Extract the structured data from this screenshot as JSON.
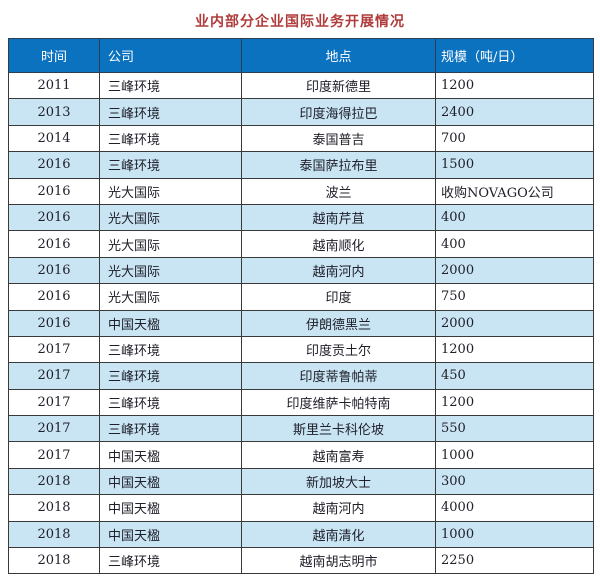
{
  "title": "业内部分企业国际业务开展情况",
  "colors": {
    "title_text": "#b03b3b",
    "header_bg": "#0b72c0",
    "header_text": "#ffffff",
    "row_stripe_bg": "#c9e5f4",
    "grid_border": "#3a3a3a"
  },
  "table": {
    "columns": [
      {
        "label": "时间",
        "align": "center"
      },
      {
        "label": "公司",
        "align": "left"
      },
      {
        "label": "地点",
        "align": "center"
      },
      {
        "label": "规模（吨/日）",
        "align": "left-tight"
      }
    ],
    "rows": [
      [
        "2011",
        "三峰环境",
        "印度新德里",
        "1200"
      ],
      [
        "2013",
        "三峰环境",
        "印度海得拉巴",
        "2400"
      ],
      [
        "2014",
        "三峰环境",
        "泰国普吉",
        "700"
      ],
      [
        "2016",
        "三峰环境",
        "泰国萨拉布里",
        "1500"
      ],
      [
        "2016",
        "光大国际",
        "波兰",
        "收购NOVAGO公司"
      ],
      [
        "2016",
        "光大国际",
        "越南芹苴",
        "400"
      ],
      [
        "2016",
        "光大国际",
        "越南顺化",
        "400"
      ],
      [
        "2016",
        "光大国际",
        "越南河内",
        "2000"
      ],
      [
        "2016",
        "光大国际",
        "印度",
        "750"
      ],
      [
        "2016",
        "中国天楹",
        "伊朗德黑兰",
        "2000"
      ],
      [
        "2017",
        "三峰环境",
        "印度贡土尔",
        "1200"
      ],
      [
        "2017",
        "三峰环境",
        "印度蒂鲁帕蒂",
        "450"
      ],
      [
        "2017",
        "三峰环境",
        "印度维萨卡帕特南",
        "1200"
      ],
      [
        "2017",
        "三峰环境",
        "斯里兰卡科伦坡",
        "550"
      ],
      [
        "2017",
        "中国天楹",
        "越南富寿",
        "1000"
      ],
      [
        "2018",
        "中国天楹",
        "新加坡大士",
        "300"
      ],
      [
        "2018",
        "中国天楹",
        "越南河内",
        "4000"
      ],
      [
        "2018",
        "中国天楹",
        "越南清化",
        "1000"
      ],
      [
        "2018",
        "三峰环境",
        "越南胡志明市",
        "2250"
      ]
    ]
  }
}
